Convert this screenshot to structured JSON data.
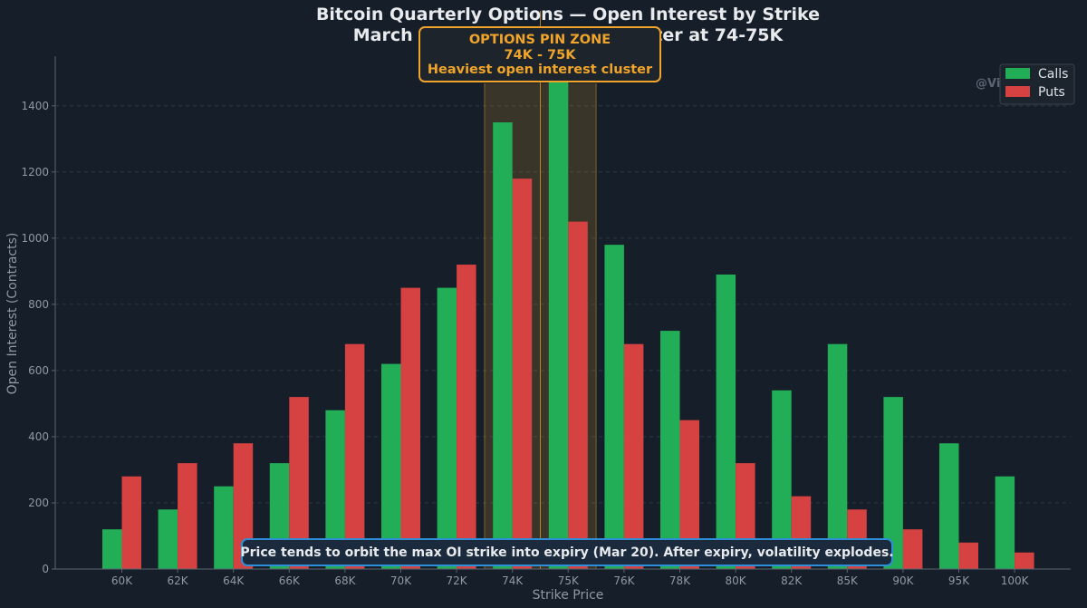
{
  "chart_data": {
    "type": "bar",
    "title": "Bitcoin Quarterly Options — Open Interest by Strike",
    "subtitle": "March 20th Expiry: Max OI cluster at 74-75K",
    "xlabel": "Strike Price",
    "ylabel": "Open Interest (Contracts)",
    "ylim": [
      0,
      1550
    ],
    "yticks": [
      0,
      200,
      400,
      600,
      800,
      1000,
      1200,
      1400
    ],
    "grid": true,
    "legend_position": "top-right",
    "categories": [
      "60K",
      "62K",
      "64K",
      "66K",
      "68K",
      "70K",
      "72K",
      "74K",
      "75K",
      "76K",
      "78K",
      "80K",
      "82K",
      "85K",
      "90K",
      "95K",
      "100K"
    ],
    "series": [
      {
        "name": "Calls",
        "color": "#22ad57",
        "values": [
          120,
          180,
          250,
          320,
          480,
          620,
          850,
          1350,
          1500,
          980,
          720,
          890,
          540,
          680,
          520,
          380,
          280
        ]
      },
      {
        "name": "Puts",
        "color": "#d64141",
        "values": [
          280,
          320,
          380,
          520,
          680,
          850,
          920,
          1180,
          1050,
          680,
          450,
          320,
          220,
          180,
          120,
          80,
          50
        ]
      }
    ],
    "highlight_zone": {
      "categories": [
        "74K",
        "75K"
      ],
      "color": "#f0a52a"
    },
    "annotation": {
      "line1": "OPTIONS PIN ZONE",
      "line2": "74K - 75K",
      "line3": "Heaviest open interest cluster"
    },
    "note": "Price tends to orbit the max OI strike into expiry (Mar 20). After expiry, volatility explodes.",
    "watermark": "@Vi"
  }
}
